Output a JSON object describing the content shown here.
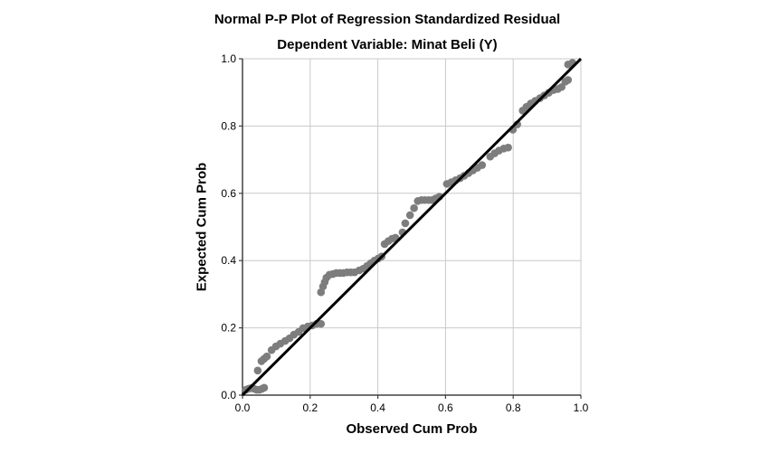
{
  "colors": {
    "background": "#ffffff",
    "marker": "#7d7d7d",
    "reference_line": "#000000",
    "gridline": "#c9c9c9",
    "axis": "#404040",
    "text": "#000000"
  },
  "chart_data": {
    "type": "scatter",
    "title": "Normal P-P Plot of Regression Standardized Residual",
    "subtitle": "Dependent Variable: Minat Beli (Y)",
    "xlabel": "Observed Cum Prob",
    "ylabel": "Expected Cum Prob",
    "xlim": [
      0.0,
      1.0
    ],
    "ylim": [
      0.0,
      1.0
    ],
    "grid": true,
    "legend": "none",
    "xticks": {
      "values": [
        0.0,
        0.2,
        0.4,
        0.6,
        0.8,
        1.0
      ],
      "labels": [
        "0.0",
        "0.2",
        "0.4",
        "0.6",
        "0.8",
        "1.0"
      ]
    },
    "yticks": {
      "values": [
        0.0,
        0.2,
        0.4,
        0.6,
        0.8,
        1.0
      ],
      "labels": [
        "0.0",
        "0.2",
        "0.4",
        "0.6",
        "0.8",
        "1.0"
      ]
    },
    "reference_line": {
      "x1": 0.0,
      "y1": 0.0,
      "x2": 1.0,
      "y2": 1.0
    },
    "marker": {
      "shape": "circle",
      "color": "#7d7d7d",
      "radius_px": 4.3
    },
    "points": [
      [
        0.01,
        0.016
      ],
      [
        0.018,
        0.019
      ],
      [
        0.026,
        0.021
      ],
      [
        0.034,
        0.019
      ],
      [
        0.042,
        0.016
      ],
      [
        0.05,
        0.016
      ],
      [
        0.058,
        0.019
      ],
      [
        0.064,
        0.022
      ],
      [
        0.045,
        0.073
      ],
      [
        0.056,
        0.101
      ],
      [
        0.064,
        0.108
      ],
      [
        0.072,
        0.115
      ],
      [
        0.086,
        0.134
      ],
      [
        0.099,
        0.145
      ],
      [
        0.112,
        0.153
      ],
      [
        0.126,
        0.161
      ],
      [
        0.139,
        0.169
      ],
      [
        0.152,
        0.18
      ],
      [
        0.166,
        0.188
      ],
      [
        0.179,
        0.199
      ],
      [
        0.193,
        0.204
      ],
      [
        0.206,
        0.207
      ],
      [
        0.219,
        0.212
      ],
      [
        0.232,
        0.212
      ],
      [
        0.232,
        0.306
      ],
      [
        0.238,
        0.323
      ],
      [
        0.243,
        0.336
      ],
      [
        0.248,
        0.349
      ],
      [
        0.257,
        0.358
      ],
      [
        0.267,
        0.36
      ],
      [
        0.277,
        0.363
      ],
      [
        0.288,
        0.363
      ],
      [
        0.298,
        0.363
      ],
      [
        0.309,
        0.365
      ],
      [
        0.32,
        0.365
      ],
      [
        0.331,
        0.365
      ],
      [
        0.345,
        0.371
      ],
      [
        0.357,
        0.376
      ],
      [
        0.368,
        0.384
      ],
      [
        0.379,
        0.392
      ],
      [
        0.39,
        0.4
      ],
      [
        0.401,
        0.406
      ],
      [
        0.411,
        0.412
      ],
      [
        0.42,
        0.449
      ],
      [
        0.431,
        0.458
      ],
      [
        0.442,
        0.465
      ],
      [
        0.452,
        0.468
      ],
      [
        0.473,
        0.484
      ],
      [
        0.481,
        0.511
      ],
      [
        0.495,
        0.535
      ],
      [
        0.507,
        0.556
      ],
      [
        0.518,
        0.577
      ],
      [
        0.529,
        0.58
      ],
      [
        0.539,
        0.58
      ],
      [
        0.55,
        0.58
      ],
      [
        0.56,
        0.58
      ],
      [
        0.571,
        0.585
      ],
      [
        0.582,
        0.59
      ],
      [
        0.604,
        0.628
      ],
      [
        0.617,
        0.633
      ],
      [
        0.63,
        0.639
      ],
      [
        0.643,
        0.645
      ],
      [
        0.655,
        0.652
      ],
      [
        0.668,
        0.66
      ],
      [
        0.681,
        0.668
      ],
      [
        0.694,
        0.676
      ],
      [
        0.708,
        0.684
      ],
      [
        0.732,
        0.709
      ],
      [
        0.745,
        0.719
      ],
      [
        0.758,
        0.727
      ],
      [
        0.772,
        0.733
      ],
      [
        0.785,
        0.736
      ],
      [
        0.799,
        0.789
      ],
      [
        0.812,
        0.805
      ],
      [
        0.828,
        0.846
      ],
      [
        0.839,
        0.857
      ],
      [
        0.852,
        0.867
      ],
      [
        0.865,
        0.875
      ],
      [
        0.879,
        0.883
      ],
      [
        0.892,
        0.891
      ],
      [
        0.905,
        0.899
      ],
      [
        0.919,
        0.907
      ],
      [
        0.932,
        0.91
      ],
      [
        0.943,
        0.916
      ],
      [
        0.954,
        0.932
      ],
      [
        0.962,
        0.937
      ],
      [
        0.962,
        0.983
      ],
      [
        0.975,
        0.988
      ]
    ]
  }
}
